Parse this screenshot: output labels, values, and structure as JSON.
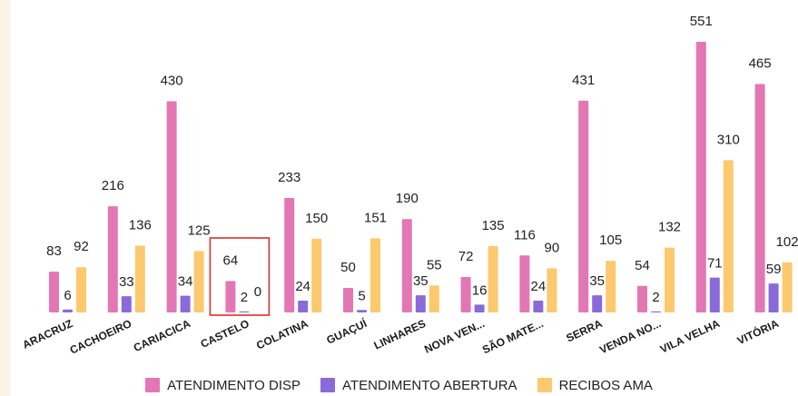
{
  "colors": {
    "background": "#ffffff",
    "left_strip": "#fbf2e8",
    "highlight_box": "#d9302c",
    "series": [
      "#e377b4",
      "#8a6ad8",
      "#fcc96e"
    ]
  },
  "chart_data": {
    "type": "bar",
    "categories": [
      "ARACRUZ",
      "CACHOEIRO",
      "CARIACICA",
      "CASTELO",
      "COLATINA",
      "GUAÇUÍ",
      "LINHARES",
      "NOVA VEN...",
      "SÃO MATE...",
      "SERRA",
      "VENDA NO...",
      "VILA VELHA",
      "VITÓRIA"
    ],
    "series": [
      {
        "name": "ATENDIMENTO DISP",
        "values": [
          83,
          216,
          430,
          64,
          233,
          50,
          190,
          72,
          116,
          431,
          54,
          551,
          465
        ]
      },
      {
        "name": "ATENDIMENTO ABERTURA",
        "values": [
          6,
          33,
          34,
          2,
          24,
          5,
          35,
          16,
          24,
          35,
          2,
          71,
          59
        ]
      },
      {
        "name": "RECIBOS AMA",
        "values": [
          92,
          136,
          125,
          0,
          150,
          151,
          55,
          135,
          90,
          105,
          132,
          310,
          102
        ]
      }
    ],
    "ylim": [
      0,
      551
    ],
    "legend_position": "bottom",
    "grid": false,
    "highlighted_category": "CASTELO"
  }
}
